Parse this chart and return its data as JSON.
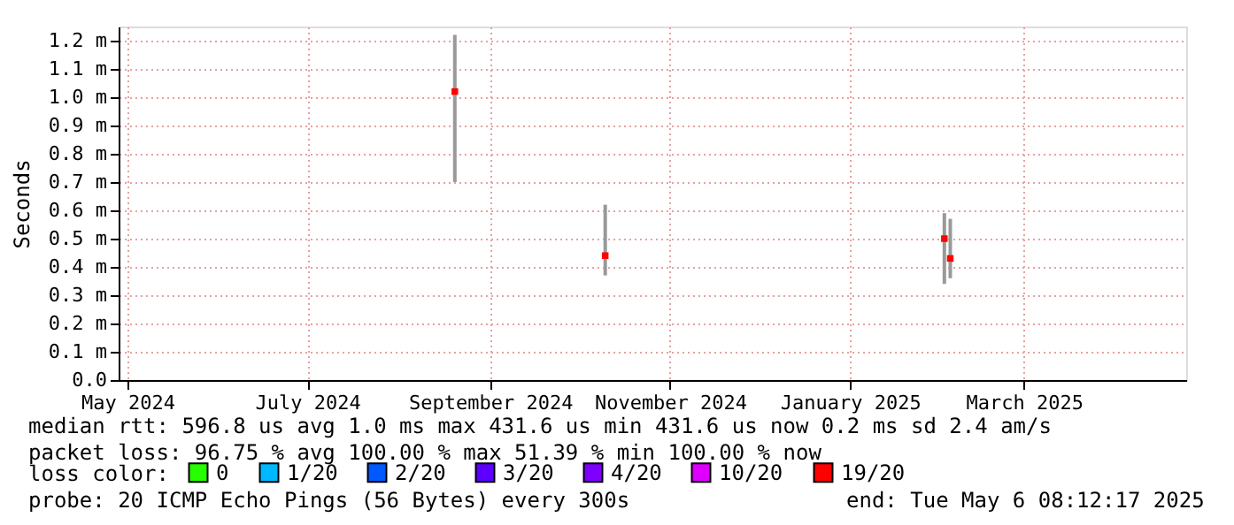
{
  "chart_data": {
    "type": "scatter",
    "ylabel": "Seconds",
    "legend_title": "loss color:",
    "legend": "bottom",
    "marker": "square",
    "grid": true,
    "xlim": [
      "2024-04-28",
      "2025-04-25"
    ],
    "xticks": [
      {
        "value": "2024-05-01",
        "label": "May 2024"
      },
      {
        "value": "2024-07-01",
        "label": "July 2024"
      },
      {
        "value": "2024-09-01",
        "label": "September 2024"
      },
      {
        "value": "2024-11-01",
        "label": "November 2024"
      },
      {
        "value": "2025-01-01",
        "label": "January 2025"
      },
      {
        "value": "2025-03-01",
        "label": "March 2025"
      }
    ],
    "ylim": [
      0,
      1.25
    ],
    "yticks": [
      {
        "value": 0,
        "label": "0.0"
      },
      {
        "value": 0.1,
        "label": "0.1 m"
      },
      {
        "value": 0.2,
        "label": "0.2 m"
      },
      {
        "value": 0.3,
        "label": "0.3 m"
      },
      {
        "value": 0.4,
        "label": "0.4 m"
      },
      {
        "value": 0.5,
        "label": "0.5 m"
      },
      {
        "value": 0.6,
        "label": "0.6 m"
      },
      {
        "value": 0.7,
        "label": "0.7 m"
      },
      {
        "value": 0.8,
        "label": "0.8 m"
      },
      {
        "value": 0.9,
        "label": "0.9 m"
      },
      {
        "value": 1.0,
        "label": "1.0 m"
      },
      {
        "value": 1.1,
        "label": "1.1 m"
      },
      {
        "value": 1.2,
        "label": "1.2 m"
      }
    ],
    "x": [
      "2024-08-20",
      "2024-10-10",
      "2025-02-02",
      "2025-02-04"
    ],
    "series": [
      {
        "name": "0",
        "color": "#26ff00",
        "values": [
          null,
          null,
          null,
          null
        ]
      },
      {
        "name": "1/20",
        "color": "#00b8ff",
        "values": [
          null,
          null,
          null,
          null
        ]
      },
      {
        "name": "2/20",
        "color": "#0059ff",
        "values": [
          null,
          null,
          null,
          null
        ]
      },
      {
        "name": "3/20",
        "color": "#5e00ff",
        "values": [
          null,
          null,
          null,
          null
        ]
      },
      {
        "name": "4/20",
        "color": "#7e00ff",
        "values": [
          null,
          null,
          null,
          null
        ]
      },
      {
        "name": "10/20",
        "color": "#dd00ff",
        "values": [
          null,
          null,
          null,
          null
        ]
      },
      {
        "name": "19/20",
        "color": "#ff0000",
        "values": [
          1.02,
          0.44,
          0.5,
          0.43
        ],
        "errors": [
          [
            0.7,
            1.22
          ],
          [
            0.37,
            0.62
          ],
          [
            0.34,
            0.59
          ],
          [
            0.36,
            0.57
          ]
        ]
      }
    ],
    "annotations": [
      "median rtt:  596.8 us avg  1.0 ms max  431.6 us min  431.6 us now  0.2 ms sd  2.4   am/s",
      "packet loss: 96.75 % avg  100.00 % max  51.39 % min  100.00 % now",
      "probe:       20 ICMP Echo Pings (56 Bytes) every 300s",
      "end: Tue May  6 08:12:17 2025"
    ]
  }
}
